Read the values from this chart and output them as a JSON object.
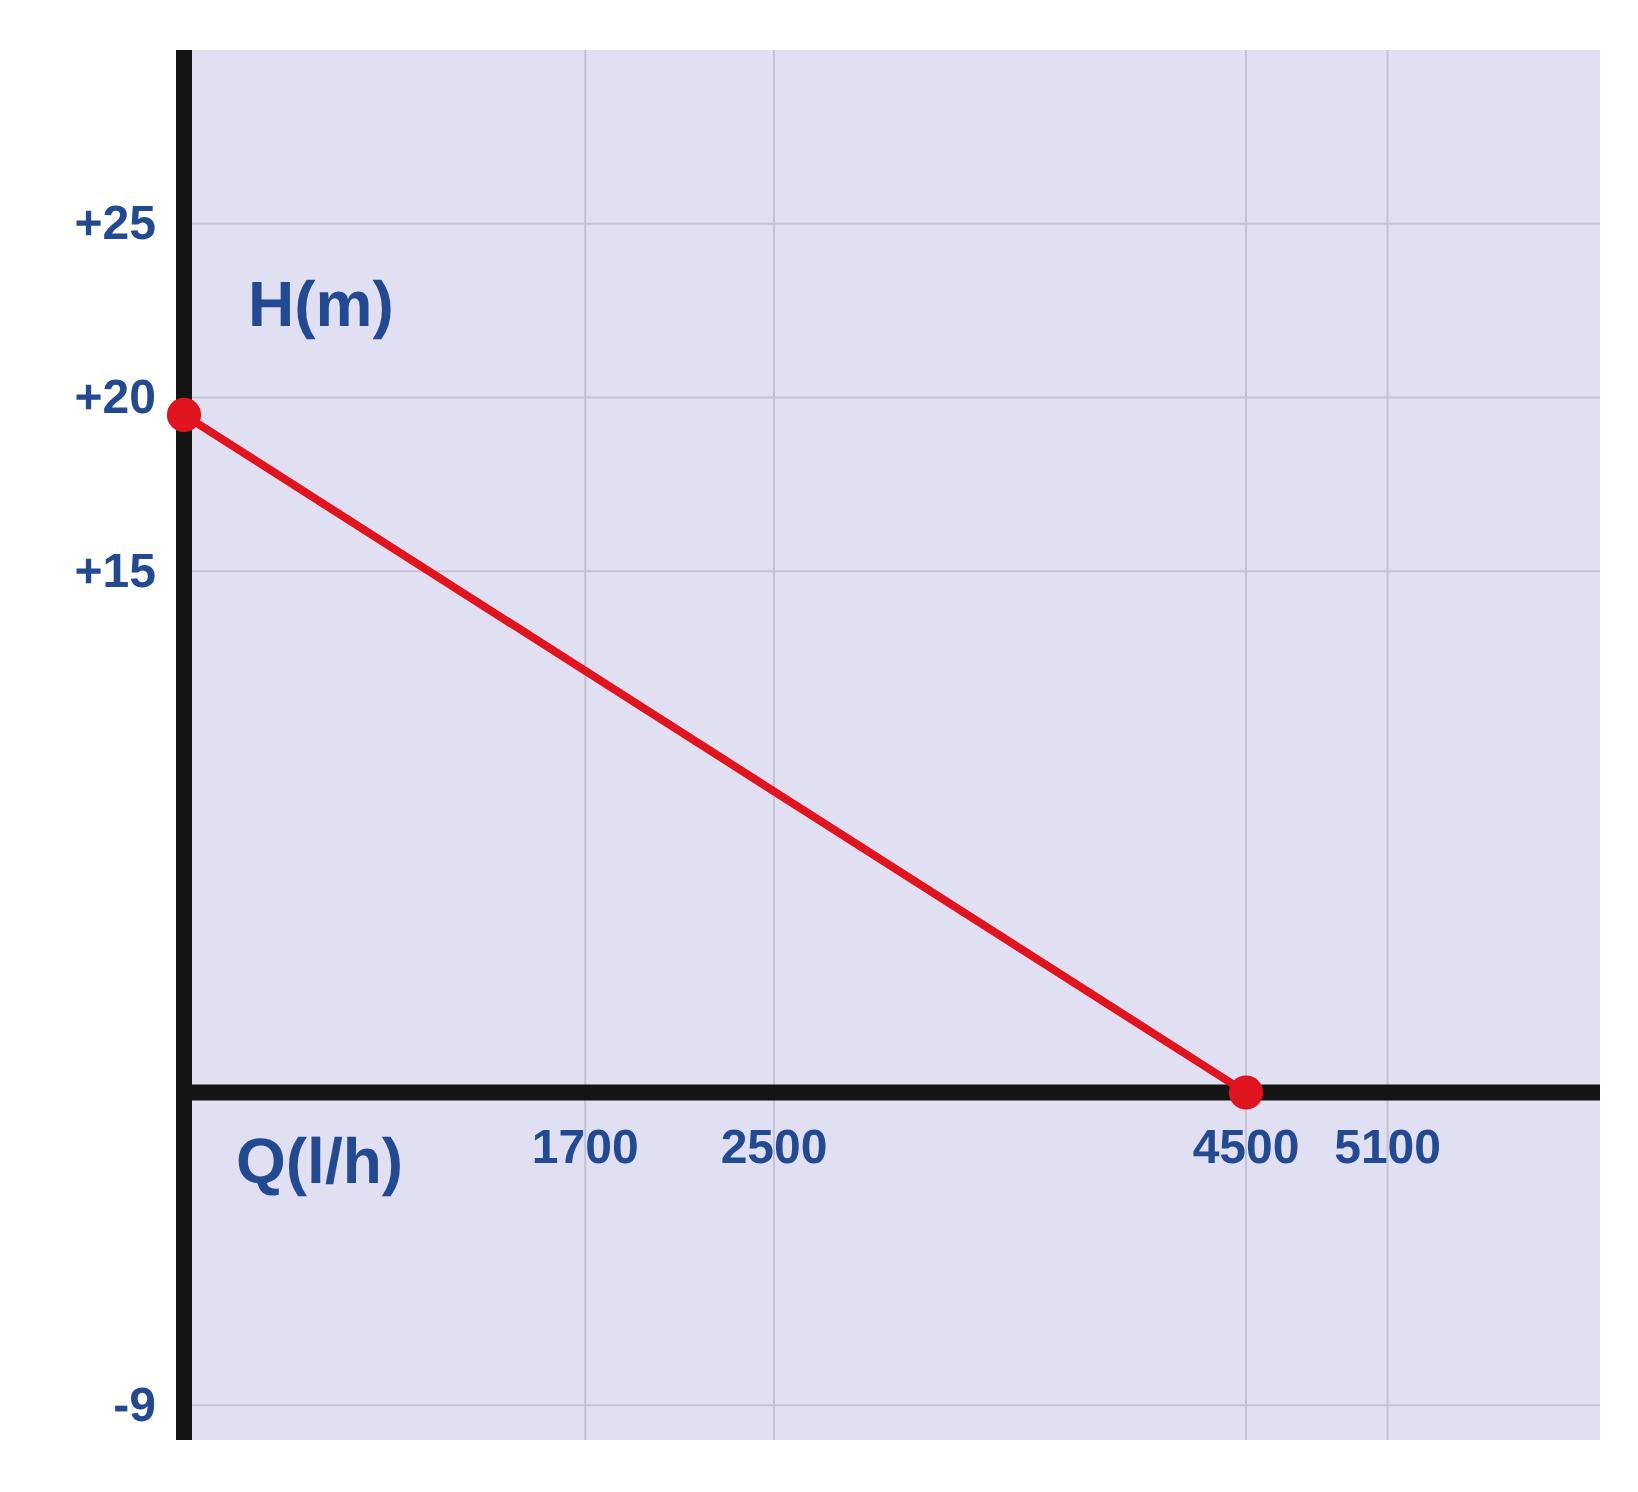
{
  "chart_data": {
    "type": "line",
    "xlabel": "Q(l/h)",
    "ylabel": "H(m)",
    "x": [
      0,
      4500
    ],
    "series": [
      {
        "color": "#e0141e",
        "values": [
          19.5,
          0
        ]
      }
    ],
    "xlim": [
      0,
      6000
    ],
    "xticks": [
      1700,
      2500,
      4500,
      5100
    ],
    "ylim": [
      -10,
      30
    ],
    "yticks": [
      {
        "value": 25,
        "label": "+25"
      },
      {
        "value": 20,
        "label": "+20"
      },
      {
        "value": 15,
        "label": "+15"
      },
      -9
    ],
    "grid": true,
    "marker": "circle",
    "line_style": "solid"
  }
}
